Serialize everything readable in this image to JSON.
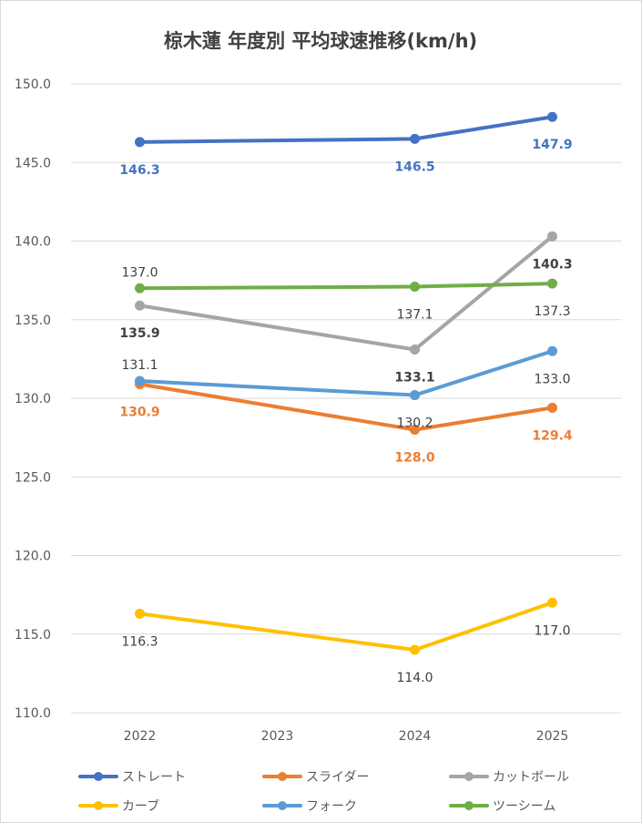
{
  "chart_data": {
    "type": "line",
    "title": "椋木蓮 年度別 平均球速推移(km/h)",
    "categories": [
      "2022",
      "2023",
      "2024",
      "2025"
    ],
    "ylim": [
      110,
      150
    ],
    "ytick_labels": [
      "110.0",
      "115.0",
      "120.0",
      "125.0",
      "130.0",
      "135.0",
      "140.0",
      "145.0",
      "150.0"
    ],
    "grid": true,
    "legend_position": "bottom",
    "series": [
      {
        "name": "ストレート",
        "color": "#4472C4",
        "values": [
          146.3,
          null,
          146.5,
          147.9
        ],
        "labels": [
          "146.3",
          null,
          "146.5",
          "147.9"
        ],
        "label_color": "#4472C4",
        "label_bold": true
      },
      {
        "name": "スライダー",
        "color": "#ED7D31",
        "values": [
          130.9,
          null,
          128.0,
          129.4
        ],
        "labels": [
          "130.9",
          null,
          "128.0",
          "129.4"
        ],
        "label_color": "#ED7D31",
        "label_bold": true
      },
      {
        "name": "カットボール",
        "color": "#A5A5A5",
        "values": [
          135.9,
          null,
          133.1,
          140.3
        ],
        "labels": [
          "135.9",
          null,
          "133.1",
          "140.3"
        ],
        "label_color": "#404040",
        "label_bold": true
      },
      {
        "name": "カーブ",
        "color": "#FFC000",
        "values": [
          116.3,
          null,
          114.0,
          117.0
        ],
        "labels": [
          "116.3",
          null,
          "114.0",
          "117.0"
        ],
        "label_color": "#404040",
        "label_bold": false
      },
      {
        "name": "フォーク",
        "color": "#5B9BD5",
        "values": [
          131.1,
          null,
          130.2,
          133.0
        ],
        "labels": [
          "131.1",
          null,
          "130.2",
          "133.0"
        ],
        "label_color": "#404040",
        "label_bold": false
      },
      {
        "name": "ツーシーム",
        "color": "#70AD47",
        "values": [
          137.0,
          null,
          137.1,
          137.3
        ],
        "labels": [
          "137.0",
          null,
          "137.1",
          "137.3"
        ],
        "label_color": "#404040",
        "label_bold": false
      }
    ]
  }
}
